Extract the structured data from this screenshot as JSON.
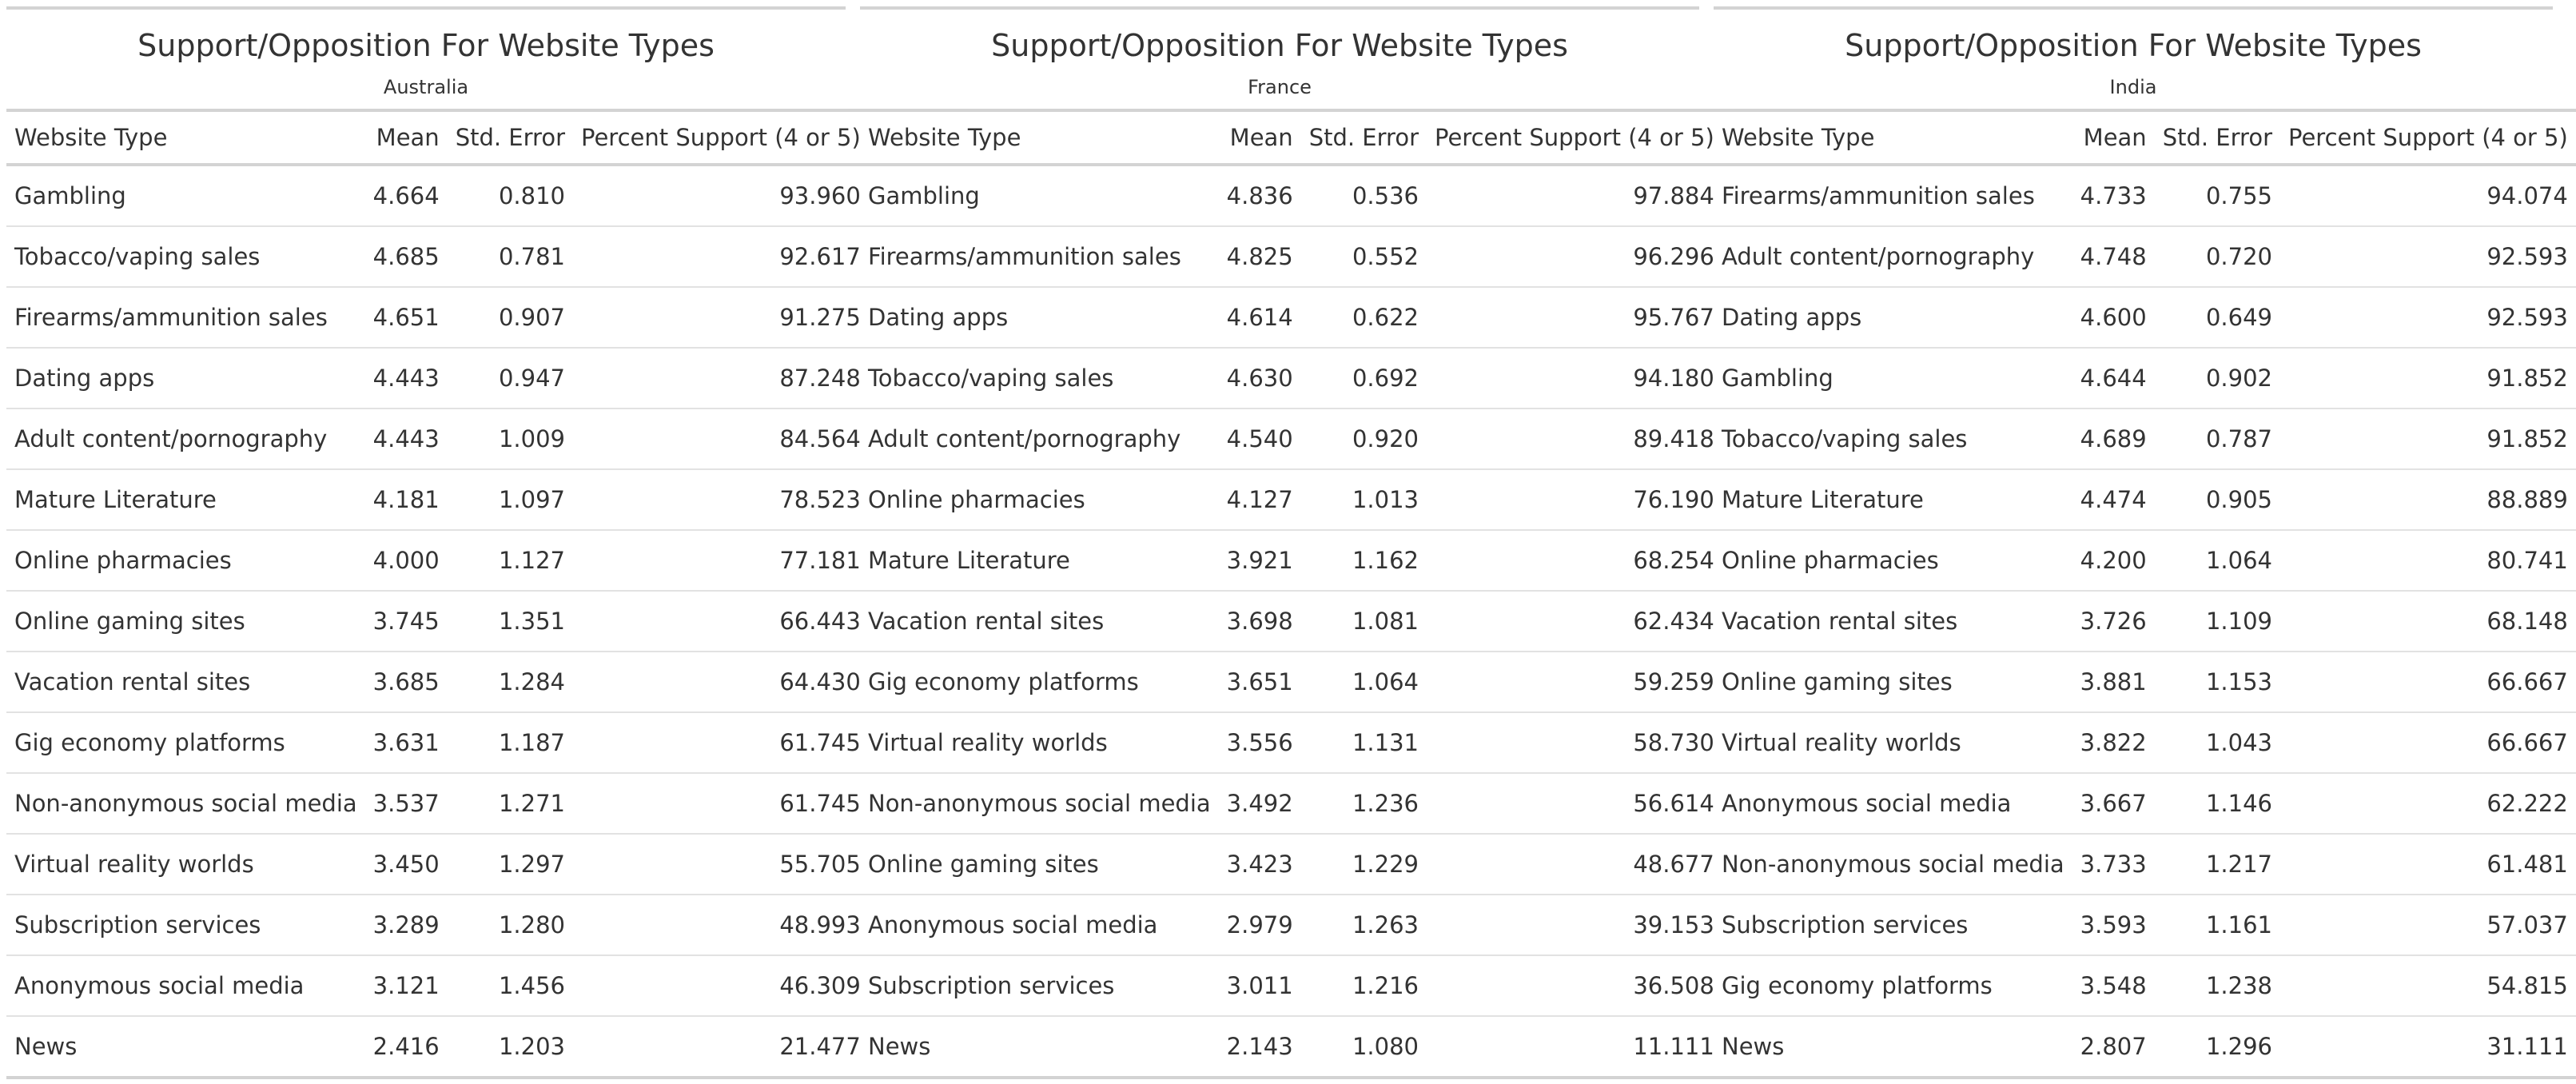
{
  "chart_data": [
    {
      "type": "table",
      "title": "Support/Opposition For Website Types",
      "subtitle": "Australia",
      "columns": [
        "Website Type",
        "Mean",
        "Std. Error",
        "Percent Support (4 or 5)"
      ],
      "rows": [
        [
          "Gambling",
          "4.664",
          "0.810",
          "93.960"
        ],
        [
          "Tobacco/vaping sales",
          "4.685",
          "0.781",
          "92.617"
        ],
        [
          "Firearms/ammunition sales",
          "4.651",
          "0.907",
          "91.275"
        ],
        [
          "Dating apps",
          "4.443",
          "0.947",
          "87.248"
        ],
        [
          "Adult content/pornography",
          "4.443",
          "1.009",
          "84.564"
        ],
        [
          "Mature Literature",
          "4.181",
          "1.097",
          "78.523"
        ],
        [
          "Online pharmacies",
          "4.000",
          "1.127",
          "77.181"
        ],
        [
          "Online gaming sites",
          "3.745",
          "1.351",
          "66.443"
        ],
        [
          "Vacation rental sites",
          "3.685",
          "1.284",
          "64.430"
        ],
        [
          "Gig economy platforms",
          "3.631",
          "1.187",
          "61.745"
        ],
        [
          "Non-anonymous social media",
          "3.537",
          "1.271",
          "61.745"
        ],
        [
          "Virtual reality worlds",
          "3.450",
          "1.297",
          "55.705"
        ],
        [
          "Subscription services",
          "3.289",
          "1.280",
          "48.993"
        ],
        [
          "Anonymous social media",
          "3.121",
          "1.456",
          "46.309"
        ],
        [
          "News",
          "2.416",
          "1.203",
          "21.477"
        ]
      ]
    },
    {
      "type": "table",
      "title": "Support/Opposition For Website Types",
      "subtitle": "France",
      "columns": [
        "Website Type",
        "Mean",
        "Std. Error",
        "Percent Support (4 or 5)"
      ],
      "rows": [
        [
          "Gambling",
          "4.836",
          "0.536",
          "97.884"
        ],
        [
          "Firearms/ammunition sales",
          "4.825",
          "0.552",
          "96.296"
        ],
        [
          "Dating apps",
          "4.614",
          "0.622",
          "95.767"
        ],
        [
          "Tobacco/vaping sales",
          "4.630",
          "0.692",
          "94.180"
        ],
        [
          "Adult content/pornography",
          "4.540",
          "0.920",
          "89.418"
        ],
        [
          "Online pharmacies",
          "4.127",
          "1.013",
          "76.190"
        ],
        [
          "Mature Literature",
          "3.921",
          "1.162",
          "68.254"
        ],
        [
          "Vacation rental sites",
          "3.698",
          "1.081",
          "62.434"
        ],
        [
          "Gig economy platforms",
          "3.651",
          "1.064",
          "59.259"
        ],
        [
          "Virtual reality worlds",
          "3.556",
          "1.131",
          "58.730"
        ],
        [
          "Non-anonymous social media",
          "3.492",
          "1.236",
          "56.614"
        ],
        [
          "Online gaming sites",
          "3.423",
          "1.229",
          "48.677"
        ],
        [
          "Anonymous social media",
          "2.979",
          "1.263",
          "39.153"
        ],
        [
          "Subscription services",
          "3.011",
          "1.216",
          "36.508"
        ],
        [
          "News",
          "2.143",
          "1.080",
          "11.111"
        ]
      ]
    },
    {
      "type": "table",
      "title": "Support/Opposition For Website Types",
      "subtitle": "India",
      "columns": [
        "Website Type",
        "Mean",
        "Std. Error",
        "Percent Support (4 or 5)"
      ],
      "rows": [
        [
          "Firearms/ammunition sales",
          "4.733",
          "0.755",
          "94.074"
        ],
        [
          "Adult content/pornography",
          "4.748",
          "0.720",
          "92.593"
        ],
        [
          "Dating apps",
          "4.600",
          "0.649",
          "92.593"
        ],
        [
          "Gambling",
          "4.644",
          "0.902",
          "91.852"
        ],
        [
          "Tobacco/vaping sales",
          "4.689",
          "0.787",
          "91.852"
        ],
        [
          "Mature Literature",
          "4.474",
          "0.905",
          "88.889"
        ],
        [
          "Online pharmacies",
          "4.200",
          "1.064",
          "80.741"
        ],
        [
          "Vacation rental sites",
          "3.726",
          "1.109",
          "68.148"
        ],
        [
          "Online gaming sites",
          "3.881",
          "1.153",
          "66.667"
        ],
        [
          "Virtual reality worlds",
          "3.822",
          "1.043",
          "66.667"
        ],
        [
          "Anonymous social media",
          "3.667",
          "1.146",
          "62.222"
        ],
        [
          "Non-anonymous social media",
          "3.733",
          "1.217",
          "61.481"
        ],
        [
          "Subscription services",
          "3.593",
          "1.161",
          "57.037"
        ],
        [
          "Gig economy platforms",
          "3.548",
          "1.238",
          "54.815"
        ],
        [
          "News",
          "2.807",
          "1.296",
          "31.111"
        ]
      ]
    }
  ]
}
